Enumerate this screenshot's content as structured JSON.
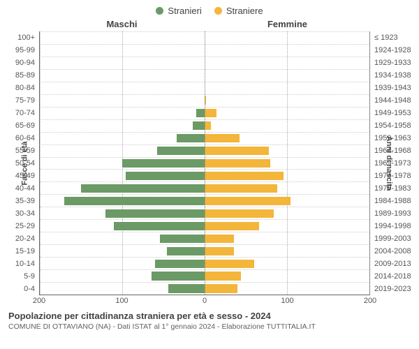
{
  "chart": {
    "type": "population-pyramid",
    "legend": [
      {
        "label": "Stranieri",
        "color": "#6b9a66"
      },
      {
        "label": "Straniere",
        "color": "#f3b63a"
      }
    ],
    "male_title": "Maschi",
    "female_title": "Femmine",
    "y_left_label": "Fasce di età",
    "y_right_label": "Anni di nascita",
    "x_max": 200,
    "x_ticks": [
      200,
      100,
      0,
      100,
      200
    ],
    "male_color": "#6b9a66",
    "female_color": "#f3b63a",
    "grid_color": "#cccccc",
    "background_color": "#ffffff",
    "title_fontsize": 13,
    "tick_fontsize": 11,
    "bar_height_pct": 72,
    "rows": [
      {
        "age": "100+",
        "birth": "≤ 1923",
        "m": 0,
        "f": 0
      },
      {
        "age": "95-99",
        "birth": "1924-1928",
        "m": 0,
        "f": 0
      },
      {
        "age": "90-94",
        "birth": "1929-1933",
        "m": 0,
        "f": 0
      },
      {
        "age": "85-89",
        "birth": "1934-1938",
        "m": 0,
        "f": 0
      },
      {
        "age": "80-84",
        "birth": "1939-1943",
        "m": 0,
        "f": 0
      },
      {
        "age": "75-79",
        "birth": "1944-1948",
        "m": 0,
        "f": 2
      },
      {
        "age": "70-74",
        "birth": "1949-1953",
        "m": 10,
        "f": 14
      },
      {
        "age": "65-69",
        "birth": "1954-1958",
        "m": 14,
        "f": 8
      },
      {
        "age": "60-64",
        "birth": "1959-1963",
        "m": 34,
        "f": 42
      },
      {
        "age": "55-59",
        "birth": "1964-1968",
        "m": 58,
        "f": 78
      },
      {
        "age": "50-54",
        "birth": "1969-1973",
        "m": 100,
        "f": 80
      },
      {
        "age": "45-49",
        "birth": "1974-1978",
        "m": 96,
        "f": 96
      },
      {
        "age": "40-44",
        "birth": "1979-1983",
        "m": 150,
        "f": 88
      },
      {
        "age": "35-39",
        "birth": "1984-1988",
        "m": 170,
        "f": 104
      },
      {
        "age": "30-34",
        "birth": "1989-1993",
        "m": 120,
        "f": 84
      },
      {
        "age": "25-29",
        "birth": "1994-1998",
        "m": 110,
        "f": 66
      },
      {
        "age": "20-24",
        "birth": "1999-2003",
        "m": 54,
        "f": 36
      },
      {
        "age": "15-19",
        "birth": "2004-2008",
        "m": 46,
        "f": 36
      },
      {
        "age": "10-14",
        "birth": "2009-2013",
        "m": 60,
        "f": 60
      },
      {
        "age": "5-9",
        "birth": "2014-2018",
        "m": 64,
        "f": 44
      },
      {
        "age": "0-4",
        "birth": "2019-2023",
        "m": 44,
        "f": 40
      }
    ]
  },
  "footer": {
    "title": "Popolazione per cittadinanza straniera per età e sesso - 2024",
    "subtitle": "COMUNE DI OTTAVIANO (NA) - Dati ISTAT al 1° gennaio 2024 - Elaborazione TUTTITALIA.IT"
  }
}
